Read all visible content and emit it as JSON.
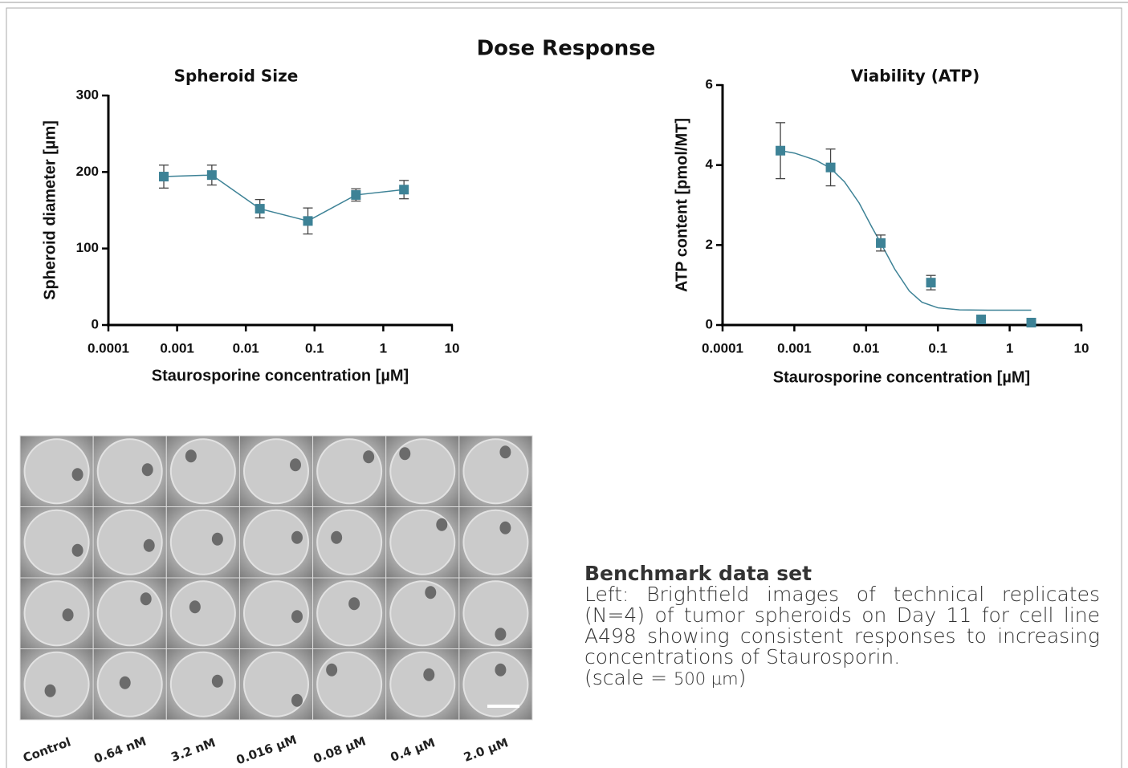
{
  "title": "Dose Response",
  "chart_data": [
    {
      "type": "line",
      "title": "Spheroid Size",
      "xlabel": "Staurosporine concentration [µM]",
      "ylabel": "Spheroid diameter [µm]",
      "xscale": "log",
      "xlim": [
        0.0001,
        10
      ],
      "xticks": [
        0.0001,
        0.001,
        0.01,
        0.1,
        1,
        10
      ],
      "ylim": [
        0,
        300
      ],
      "yticks": [
        0,
        100,
        200,
        300
      ],
      "x": [
        0.00064,
        0.0032,
        0.016,
        0.08,
        0.4,
        2.0
      ],
      "series": [
        {
          "color": "#3d8296",
          "line": true,
          "values": [
            194,
            196,
            152,
            136,
            170,
            177
          ],
          "errors": [
            15,
            13,
            12,
            17,
            8,
            12
          ]
        }
      ]
    },
    {
      "type": "scatter",
      "title": "Viability (ATP)",
      "xlabel": "Staurosporine concentration [µM]",
      "ylabel": "ATP content [pmol/MT]",
      "xscale": "log",
      "xlim": [
        0.0001,
        10
      ],
      "xticks": [
        0.0001,
        0.001,
        0.01,
        0.1,
        1,
        10
      ],
      "ylim": [
        0,
        6
      ],
      "yticks": [
        0,
        2,
        4,
        6
      ],
      "x": [
        0.00064,
        0.0032,
        0.016,
        0.08,
        0.4,
        2.0
      ],
      "series": [
        {
          "color": "#3d8296",
          "line": false,
          "values": [
            4.36,
            3.94,
            2.05,
            1.06,
            0.14,
            0.06
          ],
          "errors": [
            0.7,
            0.46,
            0.2,
            0.18,
            0.04,
            0.03
          ]
        }
      ],
      "fit": {
        "color": "#3d8296",
        "x": [
          0.00064,
          0.001,
          0.002,
          0.0032,
          0.005,
          0.008,
          0.012,
          0.016,
          0.025,
          0.04,
          0.06,
          0.1,
          0.2,
          0.5,
          2.0
        ],
        "values": [
          4.36,
          4.3,
          4.12,
          3.92,
          3.58,
          3.05,
          2.45,
          2.05,
          1.4,
          0.85,
          0.57,
          0.43,
          0.38,
          0.37,
          0.37
        ]
      }
    }
  ],
  "images": {
    "labels": [
      "Control",
      "0.64 nM",
      "3.2 nM",
      "0.016 µM",
      "0.08 µM",
      "0.4 µM",
      "2.0 µM"
    ]
  },
  "caption": {
    "heading": "Benchmark data set",
    "body": "Left: Brightfield images of technical replicates (N=4) of tumor spheroids on Day 11 for cell line A498 showing consistent responses to increasing concentrations of  Staurosporin.",
    "scale_prefix": "(scale = ",
    "scale_value": "500 µm",
    "scale_suffix": ")"
  }
}
